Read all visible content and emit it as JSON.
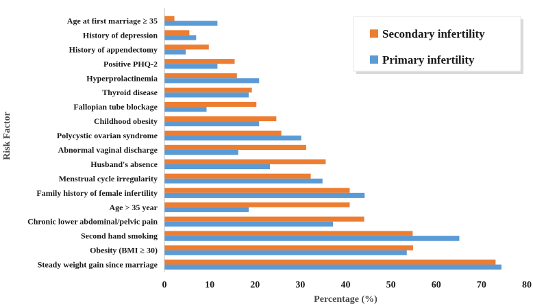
{
  "chart_data": {
    "type": "bar",
    "orientation": "horizontal",
    "xlabel": "Percentage (%)",
    "ylabel": "Risk Factor",
    "xlim": [
      0,
      80
    ],
    "xticks": [
      0,
      10,
      20,
      30,
      40,
      50,
      60,
      70,
      80
    ],
    "grid": false,
    "legend_position": "top-right",
    "categories": [
      "Age at first marriage ≥ 35",
      "History of depression",
      "History of appendectomy",
      "Positive PHQ-2",
      "Hyperprolactinemia",
      "Thyroid disease",
      "Fallopian tube blockage",
      "Childhood obesity",
      "Polycystic ovarian syndrome",
      "Abnormal vaginal discharge",
      "Husband's absence",
      "Menstrual cycle irregularity",
      "Family history of female infertility",
      "Age > 35 year",
      "Chronic lower abdominal/pelvic pain",
      "Second hand smoking",
      "Obesity (BMI ≥ 30)",
      "Steady weight gain since marriage"
    ],
    "series": [
      {
        "name": "Secondary infertility",
        "color": "#ed7d31",
        "values": [
          2.2,
          5.5,
          9.8,
          15.5,
          16.0,
          19.3,
          20.3,
          24.7,
          25.8,
          31.3,
          35.6,
          32.3,
          40.9,
          40.9,
          44.1,
          54.8,
          54.9,
          73.1
        ]
      },
      {
        "name": "Primary infertility",
        "color": "#5b9bd5",
        "values": [
          11.7,
          7.0,
          4.7,
          11.7,
          20.9,
          18.6,
          9.3,
          20.9,
          30.2,
          16.3,
          23.3,
          34.9,
          44.2,
          18.6,
          37.2,
          65.1,
          53.5,
          74.4
        ]
      }
    ]
  }
}
